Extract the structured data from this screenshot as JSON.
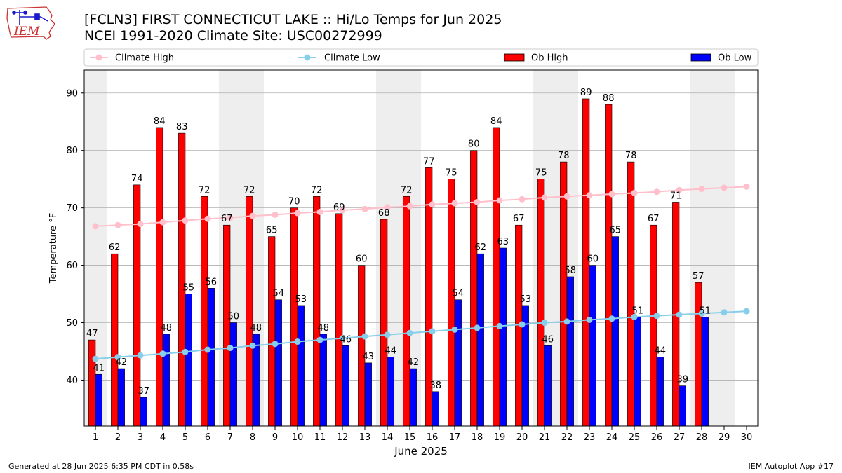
{
  "header": {
    "title_line1": "[FCLN3] FIRST CONNECTICUT LAKE :: Hi/Lo Temps for Jun 2025",
    "title_line2": "NCEI 1991-2020 Climate Site: USC00272999",
    "logo_text": "IEM"
  },
  "footer": {
    "generated": "Generated at 28 Jun 2025 6:35 PM CDT in 0.58s",
    "app": "IEM Autoplot App #17"
  },
  "colors": {
    "ob_high": "#ff0000",
    "ob_low": "#0000ff",
    "climate_high": "#ffc0cb",
    "climate_low": "#87ceeb",
    "weekend_band": "#eeeeee",
    "grid": "#b0b0b0",
    "logo_red": "#cc3333",
    "logo_blue": "#1a1acc"
  },
  "chart_data": {
    "type": "bar",
    "xlabel": "June 2025",
    "ylabel": "Temperature °F",
    "ylim": [
      32,
      94
    ],
    "xlim": [
      0.5,
      30.5
    ],
    "yticks": [
      40,
      50,
      60,
      70,
      80,
      90
    ],
    "grid": "horizontal",
    "legend_position": "top",
    "categories": [
      "1",
      "2",
      "3",
      "4",
      "5",
      "6",
      "7",
      "8",
      "9",
      "10",
      "11",
      "12",
      "13",
      "14",
      "15",
      "16",
      "17",
      "18",
      "19",
      "20",
      "21",
      "22",
      "23",
      "24",
      "25",
      "26",
      "27",
      "28",
      "29",
      "30"
    ],
    "weekend_days": [
      1,
      7,
      8,
      14,
      15,
      21,
      22,
      28,
      29
    ],
    "series": [
      {
        "name": "Ob High",
        "kind": "bar",
        "values": [
          47,
          62,
          74,
          84,
          83,
          72,
          67,
          72,
          65,
          70,
          72,
          69,
          60,
          68,
          72,
          77,
          75,
          80,
          84,
          67,
          75,
          78,
          89,
          88,
          78,
          67,
          71,
          57,
          null,
          null
        ]
      },
      {
        "name": "Ob Low",
        "kind": "bar",
        "values": [
          41,
          42,
          37,
          48,
          55,
          56,
          50,
          48,
          54,
          53,
          48,
          46,
          43,
          44,
          42,
          38,
          54,
          62,
          63,
          53,
          46,
          58,
          60,
          65,
          51,
          44,
          39,
          51,
          null,
          null
        ]
      },
      {
        "name": "Climate High",
        "kind": "line",
        "values": [
          66.8,
          67.0,
          67.2,
          67.5,
          67.8,
          68.1,
          68.3,
          68.6,
          68.8,
          69.1,
          69.3,
          69.6,
          69.8,
          70.1,
          70.3,
          70.6,
          70.8,
          71.0,
          71.3,
          71.5,
          71.8,
          72.0,
          72.2,
          72.4,
          72.6,
          72.8,
          73.1,
          73.3,
          73.5,
          73.7
        ]
      },
      {
        "name": "Climate Low",
        "kind": "line",
        "values": [
          43.7,
          44.0,
          44.3,
          44.6,
          44.9,
          45.3,
          45.6,
          46.0,
          46.3,
          46.7,
          47.0,
          47.3,
          47.6,
          47.9,
          48.2,
          48.5,
          48.8,
          49.1,
          49.4,
          49.7,
          50.0,
          50.2,
          50.5,
          50.7,
          51.0,
          51.2,
          51.4,
          51.6,
          51.8,
          52.0
        ]
      }
    ]
  }
}
